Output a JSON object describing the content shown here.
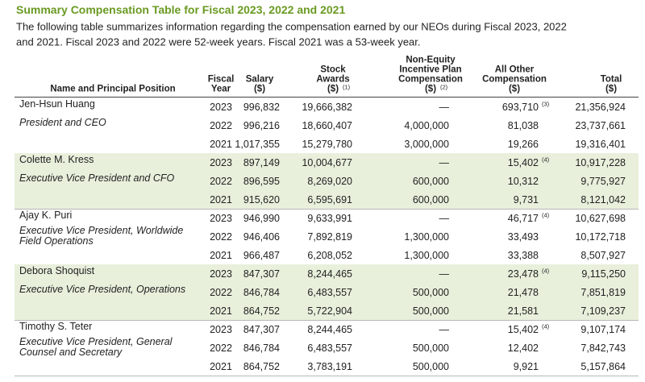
{
  "title": "Summary Compensation Table for Fiscal 2023, 2022 and 2021",
  "intro": [
    "The following table summarizes information regarding the compensation earned by our NEOs during Fiscal 2023, 2022",
    "and 2021.  Fiscal 2023 and 2022 were 52-week years. Fiscal 2021 was a 53-week year."
  ],
  "header": {
    "name": {
      "lines": [
        "Name and Principal Position"
      ]
    },
    "year": {
      "lines": [
        "Fiscal",
        "Year"
      ]
    },
    "salary": {
      "lines": [
        "Salary",
        "($)"
      ]
    },
    "stock": {
      "lines": [
        "Stock",
        "Awards",
        "($)"
      ],
      "note": "(1)"
    },
    "non_equity": {
      "lines": [
        "Non-Equity",
        "Incentive Plan",
        "Compensation",
        "($)"
      ],
      "note": "(2)"
    },
    "other": {
      "lines": [
        "All Other",
        "Compensation",
        "($)"
      ]
    },
    "total": {
      "lines": [
        "Total",
        "($)"
      ]
    }
  },
  "executives": [
    {
      "name": "Jen-Hsun Huang",
      "title": [
        "President and CEO"
      ],
      "rows": [
        {
          "year": "2023",
          "salary": "996,832",
          "stock": "19,666,382",
          "non_equity": "—",
          "other": "693,710",
          "other_note": "(3)",
          "total": "21,356,924"
        },
        {
          "year": "2022",
          "salary": "996,216",
          "stock": "18,660,407",
          "non_equity": "4,000,000",
          "other": "81,038",
          "total": "23,737,661"
        },
        {
          "year": "2021",
          "salary": "1,017,355",
          "stock": "15,279,780",
          "non_equity": "3,000,000",
          "other": "19,266",
          "total": "19,316,401"
        }
      ]
    },
    {
      "name": "Colette M. Kress",
      "title": [
        "Executive Vice President and CFO"
      ],
      "rows": [
        {
          "year": "2023",
          "salary": "897,149",
          "stock": "10,004,677",
          "non_equity": "—",
          "other": "15,402",
          "other_note": "(4)",
          "total": "10,917,228"
        },
        {
          "year": "2022",
          "salary": "896,595",
          "stock": "8,269,020",
          "non_equity": "600,000",
          "other": "10,312",
          "total": "9,775,927"
        },
        {
          "year": "2021",
          "salary": "915,620",
          "stock": "6,595,691",
          "non_equity": "600,000",
          "other": "9,731",
          "total": "8,121,042"
        }
      ]
    },
    {
      "name": "Ajay K. Puri",
      "title": [
        "Executive Vice President, Worldwide",
        "Field Operations"
      ],
      "rows": [
        {
          "year": "2023",
          "salary": "946,990",
          "stock": "9,633,991",
          "non_equity": "—",
          "other": "46,717",
          "other_note": "(4)",
          "total": "10,627,698"
        },
        {
          "year": "2022",
          "salary": "946,406",
          "stock": "7,892,819",
          "non_equity": "1,300,000",
          "other": "33,493",
          "total": "10,172,718"
        },
        {
          "year": "2021",
          "salary": "966,487",
          "stock": "6,208,052",
          "non_equity": "1,300,000",
          "other": "33,388",
          "total": "8,507,927"
        }
      ]
    },
    {
      "name": "Debora Shoquist",
      "title": [
        "Executive Vice President, Operations"
      ],
      "rows": [
        {
          "year": "2023",
          "salary": "847,307",
          "stock": "8,244,465",
          "non_equity": "—",
          "other": "23,478",
          "other_note": "(4)",
          "total": "9,115,250"
        },
        {
          "year": "2022",
          "salary": "846,784",
          "stock": "6,483,557",
          "non_equity": "500,000",
          "other": "21,478",
          "total": "7,851,819"
        },
        {
          "year": "2021",
          "salary": "864,752",
          "stock": "5,722,904",
          "non_equity": "500,000",
          "other": "21,581",
          "total": "7,109,237"
        }
      ]
    },
    {
      "name": "Timothy S. Teter",
      "title": [
        "Executive Vice President, General",
        "Counsel and Secretary"
      ],
      "rows": [
        {
          "year": "2023",
          "salary": "847,307",
          "stock": "8,244,465",
          "non_equity": "—",
          "other": "15,402",
          "other_note": "(4)",
          "total": "9,107,174"
        },
        {
          "year": "2022",
          "salary": "846,784",
          "stock": "6,483,557",
          "non_equity": "500,000",
          "other": "12,402",
          "total": "7,842,743"
        },
        {
          "year": "2021",
          "salary": "864,752",
          "stock": "3,783,191",
          "non_equity": "500,000",
          "other": "9,921",
          "total": "5,157,864"
        }
      ]
    }
  ]
}
